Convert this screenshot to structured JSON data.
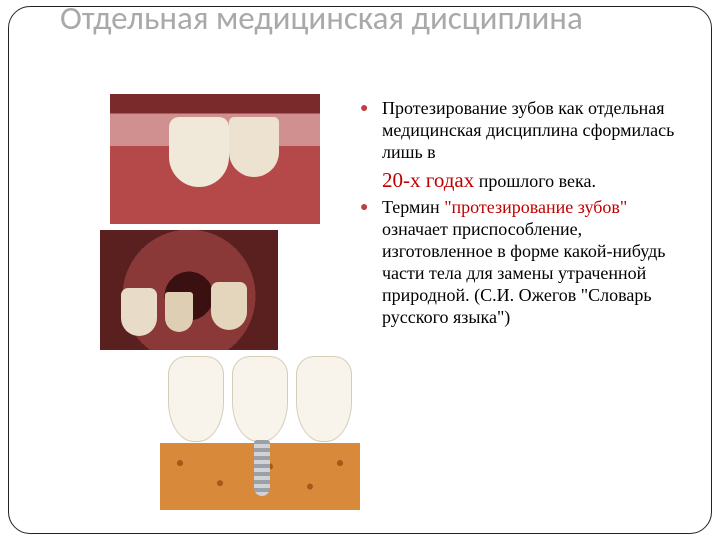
{
  "colors": {
    "title": "#a9a9a9",
    "bullet": "#c04040",
    "highlight": "#c00000",
    "text": "#000000",
    "background": "#ffffff",
    "frame_border": "#222222"
  },
  "typography": {
    "title_family": "Calibri, Arial, sans-serif",
    "title_fontsize_pt": 25,
    "body_family": "Georgia, 'Times New Roman', serif",
    "body_fontsize_pt": 14,
    "highlight_fontsize_pt": 16
  },
  "title": "Отдельная медицинская дисциплина",
  "bullets": [
    {
      "pre": "Протезирование зубов как отдельная медицинская дисциплина сформилась лишь в",
      "highlight": "20-х годах",
      "post": " прошлого века."
    },
    {
      "pre": "Термин ",
      "highlight": "\"протезирование зубов\"",
      "post": " означает приспособление, изготовленное в форме какой-нибудь части тела для замены утраченной природной. (С.И. Ожегов \"Словарь русского языка\")"
    }
  ],
  "images": [
    {
      "name": "photo-implant-in-mouth",
      "alt": "Фото: имплант между зубами"
    },
    {
      "name": "photo-oral-cavity",
      "alt": "Фото: полость рта с зубами"
    },
    {
      "name": "illustration-dental-implant",
      "alt": "Иллюстрация: зубной имплант в кости"
    }
  ]
}
